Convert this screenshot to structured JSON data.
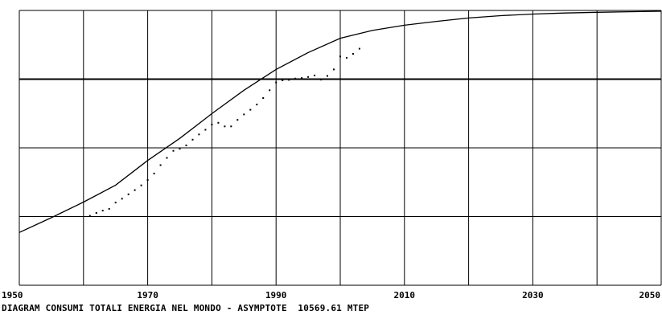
{
  "chart_data": {
    "type": "line",
    "title": "",
    "caption": "DIAGRAM CONSUMI TOTALI ENERGIA NEL MONDO - ASYMPTOTE  10569.61 MTEP",
    "xlabel": "",
    "ylabel": "",
    "xlim": [
      1950,
      2050
    ],
    "ylim": [
      0,
      10569.61
    ],
    "x_ticks": [
      1950,
      1970,
      1990,
      2010,
      2030,
      2050
    ],
    "grid": true,
    "legend": "none",
    "series": [
      {
        "style": "line",
        "x": [
          1950,
          1955,
          1960,
          1965,
          1970,
          1975,
          1980,
          1985,
          1990,
          1995,
          2000,
          2005,
          2010,
          2015,
          2020,
          2025,
          2030,
          2035,
          2040,
          2045,
          2050
        ],
        "y": [
          2030,
          2600,
          3200,
          3850,
          4800,
          5650,
          6600,
          7500,
          8300,
          8950,
          9500,
          9800,
          10000,
          10150,
          10280,
          10370,
          10430,
          10470,
          10500,
          10520,
          10540
        ]
      },
      {
        "style": "points",
        "x": [
          1961,
          1962,
          1963,
          1964,
          1965,
          1966,
          1967,
          1968,
          1969,
          1970,
          1971,
          1972,
          1973,
          1974,
          1975,
          1976,
          1977,
          1978,
          1979,
          1980,
          1981,
          1982,
          1983,
          1984,
          1985,
          1986,
          1987,
          1988,
          1989,
          1990,
          1991,
          1992,
          1993,
          1994,
          1995,
          1996,
          1997,
          1998,
          1999,
          2000,
          2001,
          2002,
          2003
        ],
        "y": [
          2670,
          2780,
          2870,
          2940,
          3180,
          3330,
          3500,
          3660,
          3840,
          4050,
          4300,
          4620,
          4900,
          5170,
          5250,
          5380,
          5600,
          5800,
          5980,
          6180,
          6250,
          6110,
          6110,
          6360,
          6570,
          6750,
          6950,
          7200,
          7500,
          7800,
          7880,
          7900,
          7950,
          7970,
          8010,
          8070,
          7910,
          8050,
          8300,
          8800,
          8750,
          8900,
          9100
        ]
      }
    ]
  }
}
